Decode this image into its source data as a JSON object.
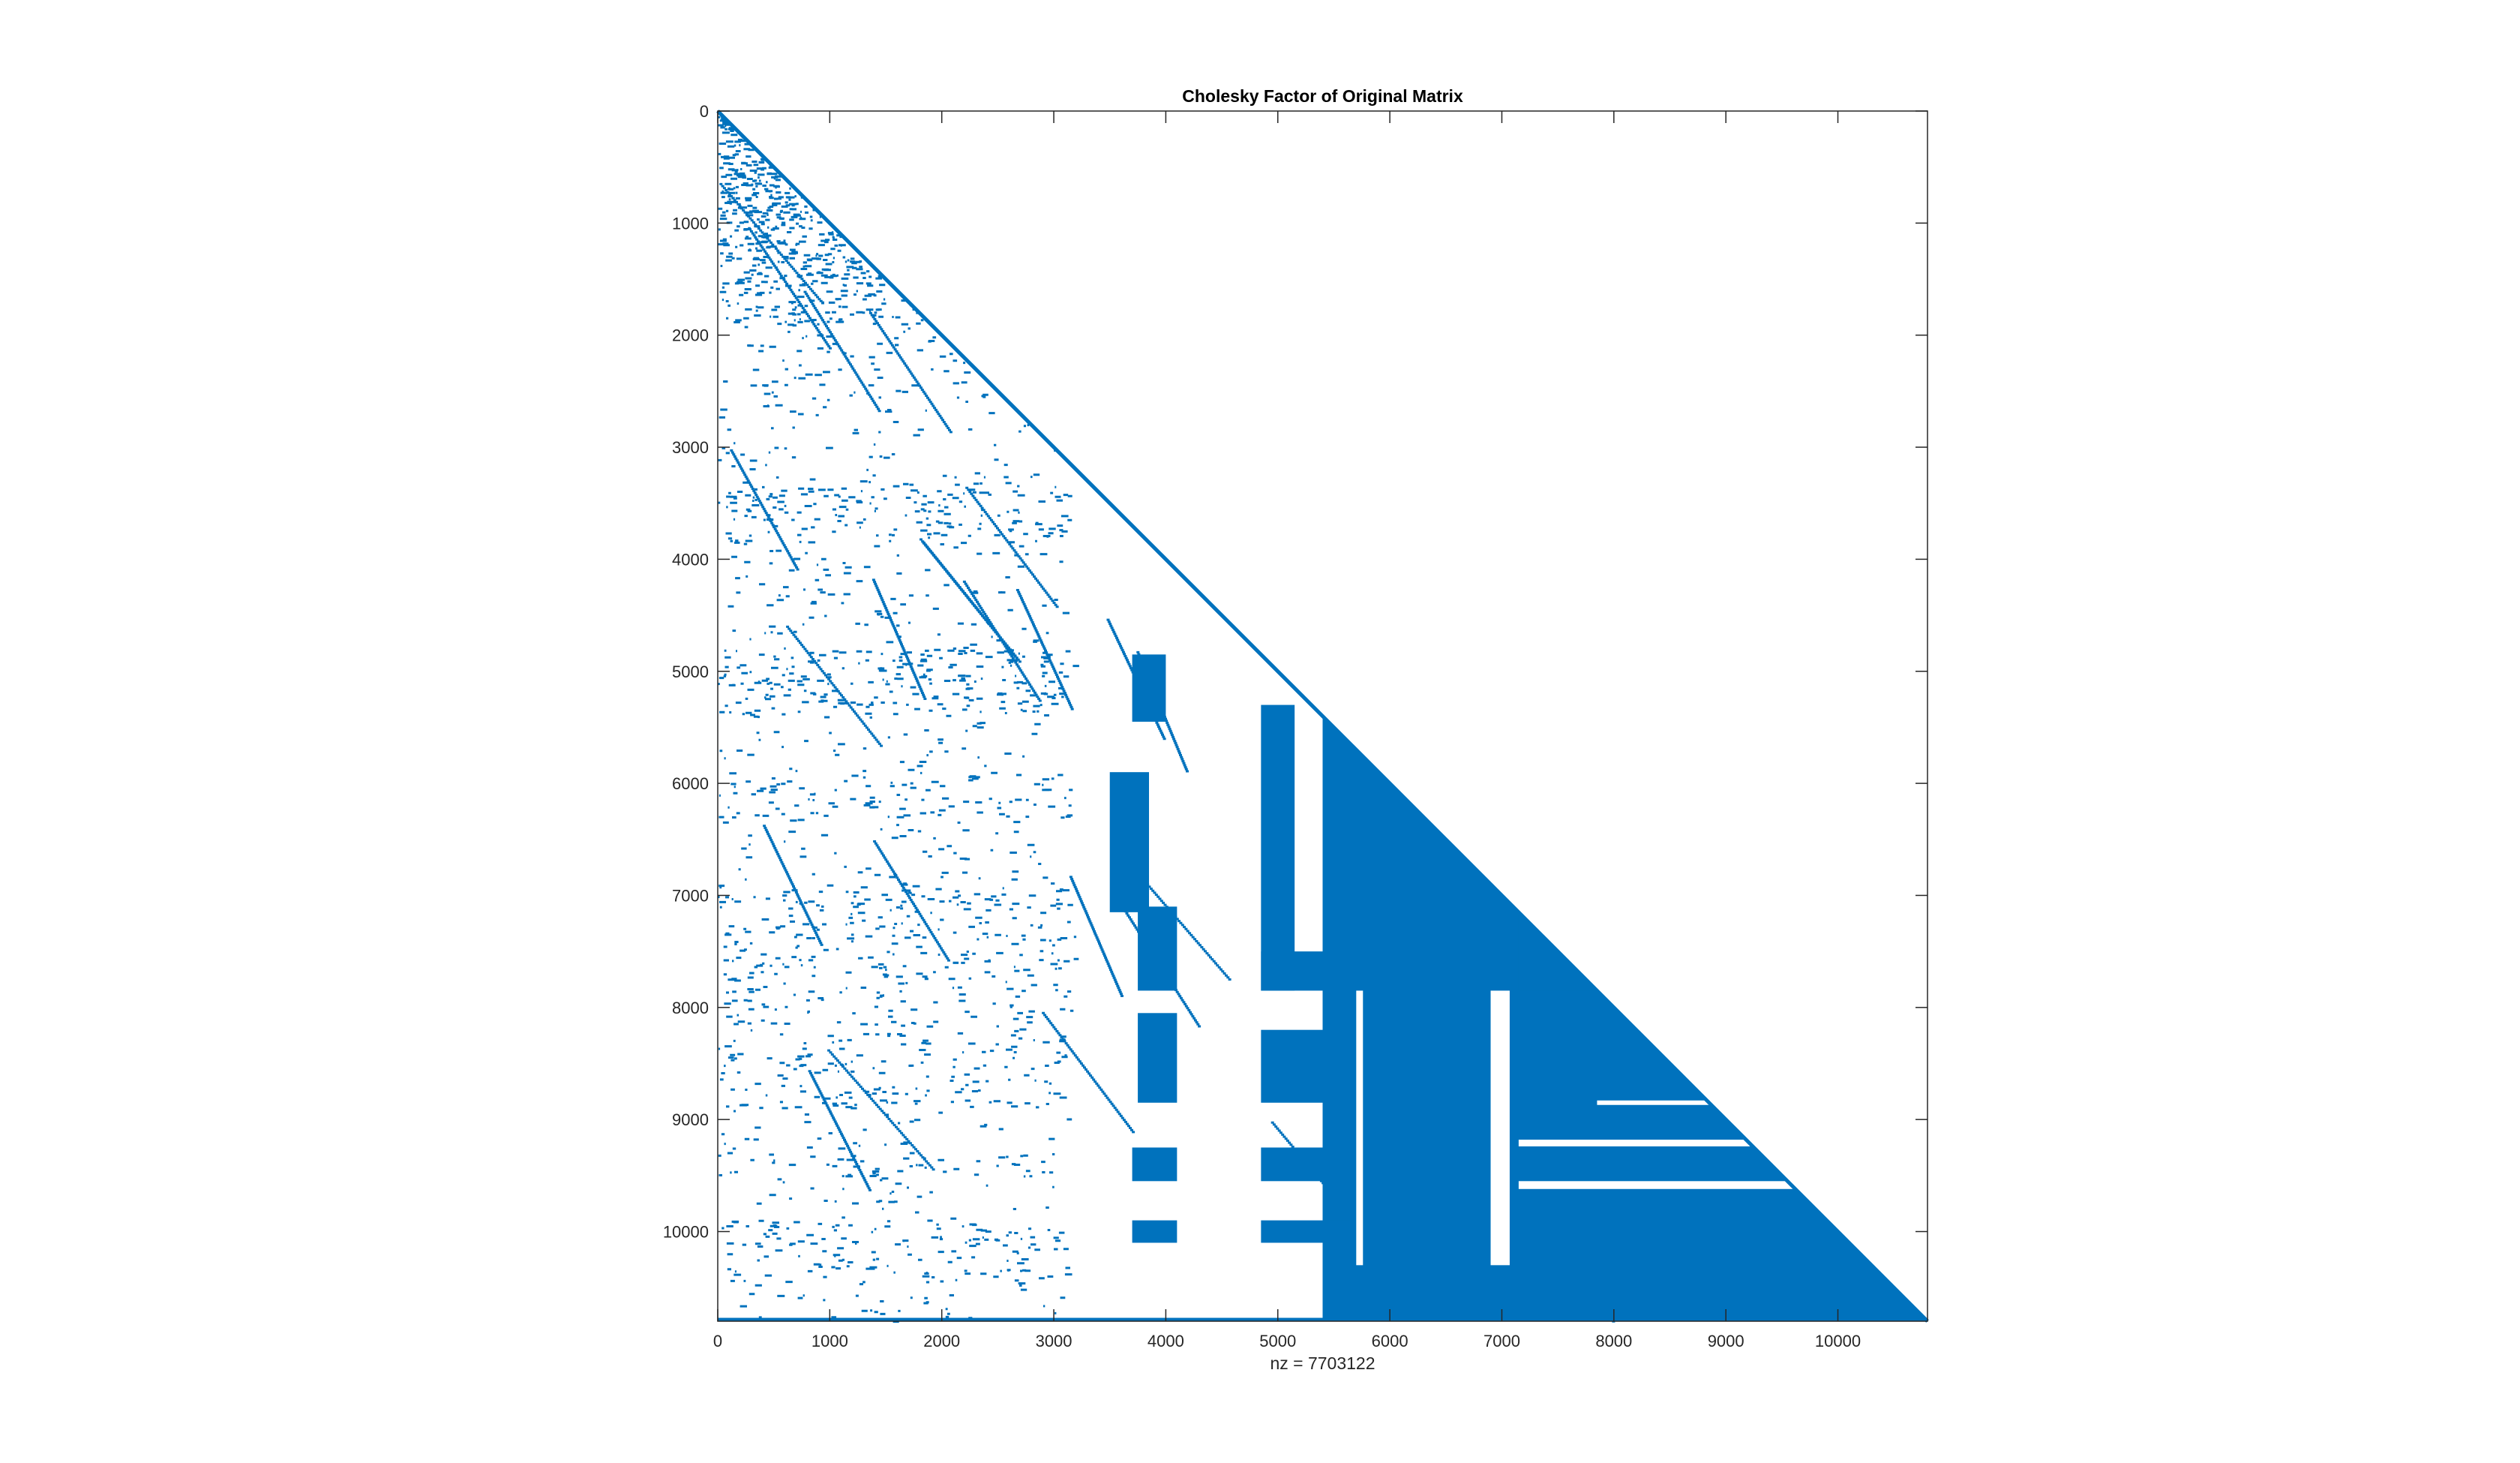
{
  "chart_data": {
    "type": "spy",
    "title": "Cholesky Factor of Original Matrix",
    "xlabel": "nz = 7703122",
    "ylabel": "",
    "matrix_size": 10800,
    "xlim": [
      0,
      10800
    ],
    "ylim": [
      0,
      10800
    ],
    "y_reversed": true,
    "grid": false,
    "legend": "none",
    "marker_color": "#0072BD",
    "xticks": [
      0,
      1000,
      2000,
      3000,
      4000,
      5000,
      6000,
      7000,
      8000,
      9000,
      10000
    ],
    "yticks": [
      0,
      1000,
      2000,
      3000,
      4000,
      5000,
      6000,
      7000,
      8000,
      9000,
      10000
    ],
    "nnz": 7703122,
    "pattern": "lower-triangular",
    "dense_blocks": [
      {
        "cols": [
          3700,
          4000
        ],
        "rows": [
          4850,
          5450
        ]
      },
      {
        "cols": [
          3500,
          3850
        ],
        "rows": [
          5900,
          7150
        ]
      },
      {
        "cols": [
          3750,
          4100
        ],
        "rows": [
          7100,
          7850
        ]
      },
      {
        "cols": [
          3750,
          4100
        ],
        "rows": [
          8050,
          8850
        ]
      },
      {
        "cols": [
          3700,
          4100
        ],
        "rows": [
          9250,
          9550
        ]
      },
      {
        "cols": [
          3700,
          4100
        ],
        "rows": [
          9900,
          10100
        ]
      },
      {
        "cols": [
          4850,
          5150
        ],
        "rows": [
          5300,
          7850
        ]
      },
      {
        "cols": [
          4850,
          5450
        ],
        "rows": [
          7500,
          7850
        ]
      },
      {
        "cols": [
          4850,
          5650
        ],
        "rows": [
          8200,
          8850
        ]
      },
      {
        "cols": [
          4850,
          5650
        ],
        "rows": [
          9250,
          9550
        ]
      },
      {
        "cols": [
          4850,
          5650
        ],
        "rows": [
          9900,
          10100
        ]
      },
      {
        "cols": [
          5400,
          7150
        ],
        "rows": [
          5400,
          7850
        ]
      },
      {
        "cols": [
          7150,
          8850
        ],
        "rows": [
          7850,
          8850
        ]
      },
      {
        "cols": [
          7150,
          8850
        ],
        "rows": [
          9250,
          9550
        ]
      },
      {
        "cols": [
          7150,
          9700
        ],
        "rows": [
          9800,
          10300
        ]
      },
      {
        "cols": [
          7700,
          9700
        ],
        "rows": [
          10300,
          10800
        ]
      },
      {
        "cols": [
          0,
          10800
        ],
        "rows": [
          10770,
          10800
        ]
      }
    ]
  }
}
